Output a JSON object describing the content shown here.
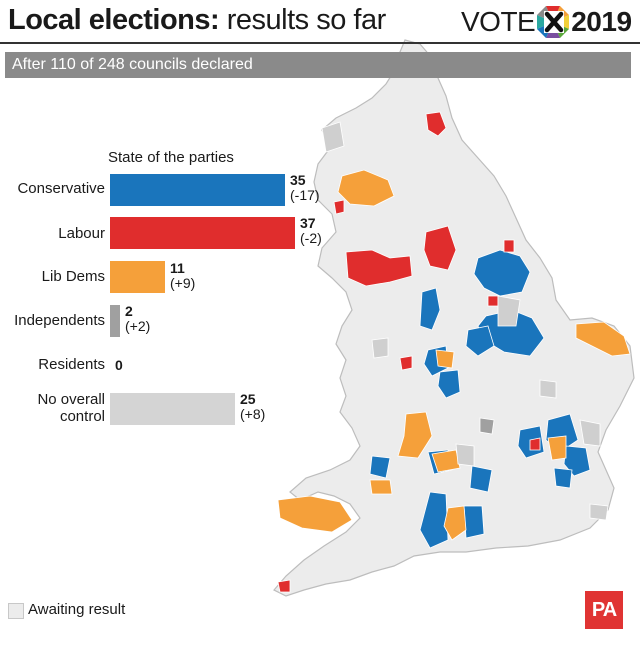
{
  "title_bold": "Local elections:",
  "title_light": "results so far",
  "logo": {
    "word": "VOTE",
    "year": "2019"
  },
  "subtitle": "After 110 of 248 councils declared",
  "legend_awaiting": "Awaiting result",
  "pa_logo": "PA",
  "colors": {
    "conservative": "#1a75bc",
    "labour": "#e02d2d",
    "libdem": "#f5a03a",
    "independent": "#a0a0a0",
    "residents": "#7a7a7a",
    "noc": "#d4d4d4",
    "awaiting": "#ececec"
  },
  "chart_data": {
    "type": "bar",
    "title": "State of the parties",
    "orientation": "horizontal",
    "categories": [
      "Conservative",
      "Labour",
      "Lib Dems",
      "Independents",
      "Residents",
      "No overall control"
    ],
    "values": [
      35,
      37,
      11,
      2,
      0,
      25
    ],
    "changes": [
      "(-17)",
      "(-2)",
      "(+9)",
      "(+2)",
      "",
      "(+8)"
    ],
    "value_labels": [
      "35",
      "37",
      "11",
      "2",
      "0",
      "25"
    ],
    "bar_colors": [
      "#1a75bc",
      "#e02d2d",
      "#f5a03a",
      "#a0a0a0",
      "#7a7a7a",
      "#d4d4d4"
    ]
  }
}
